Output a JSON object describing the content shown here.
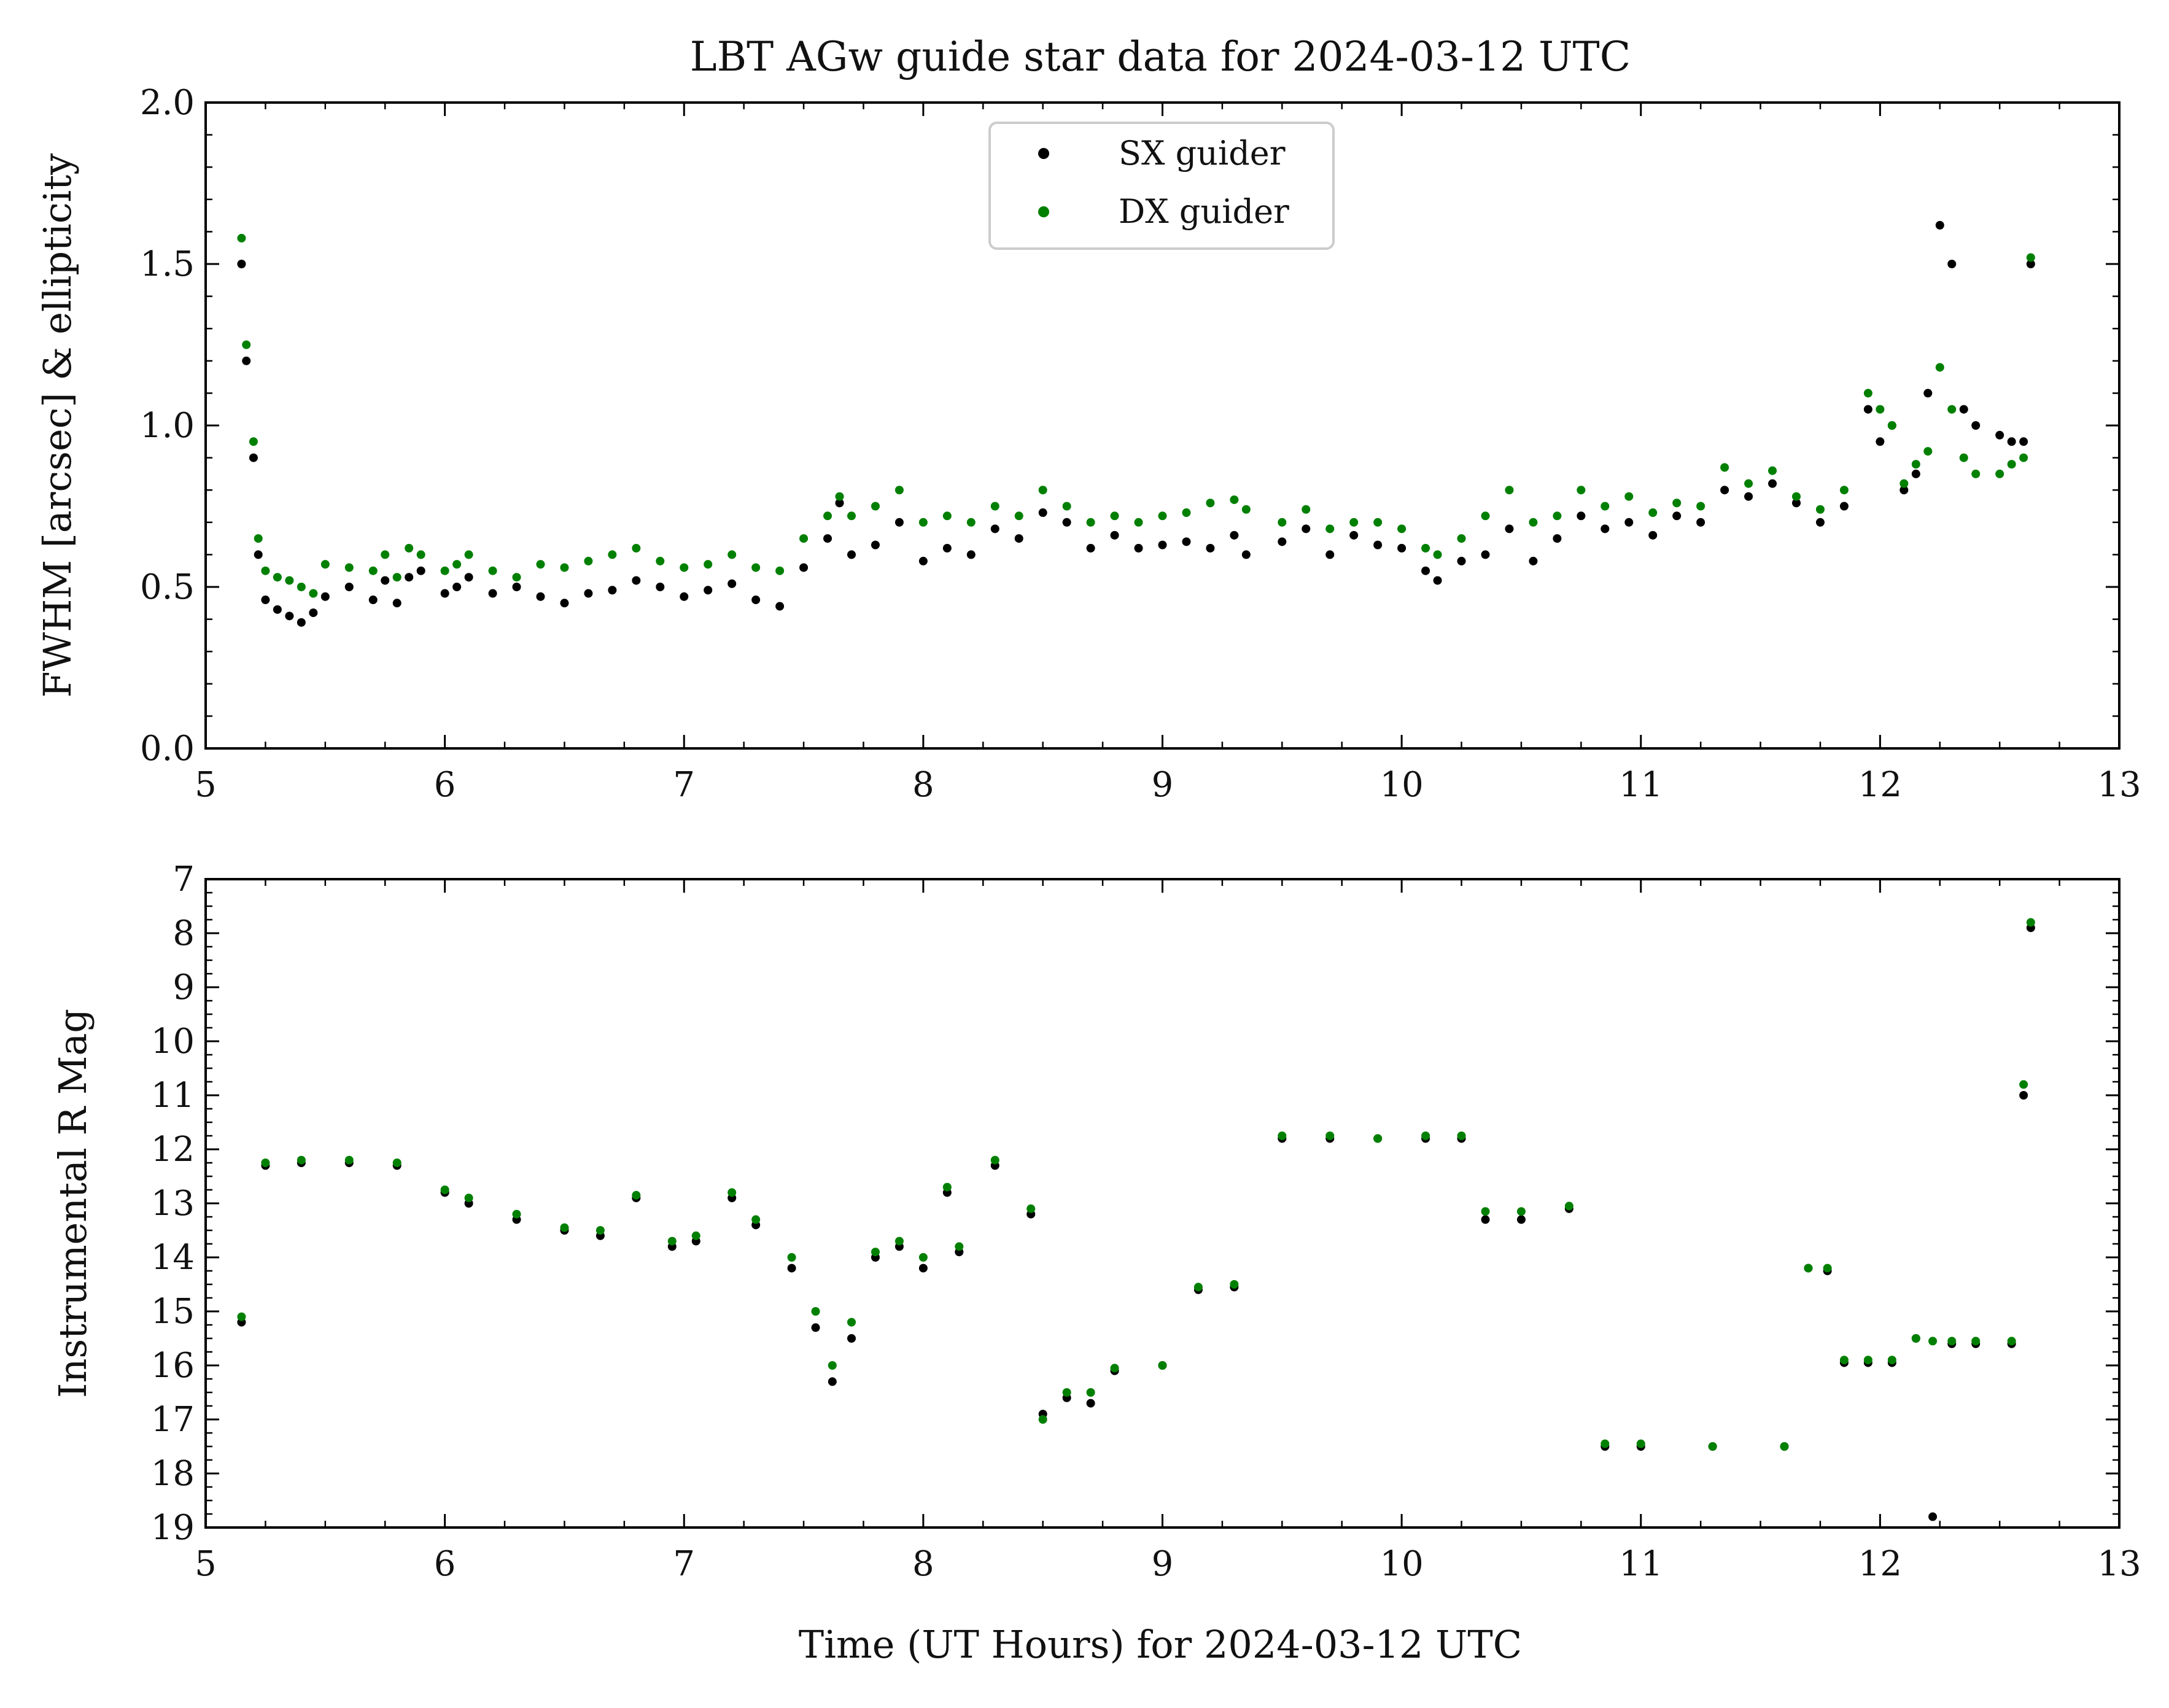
{
  "figure": {
    "title": "LBT AGw guide star data for 2024-03-12 UTC"
  },
  "colors": {
    "sx": "#000000",
    "dx": "#008000",
    "axis": "#000000",
    "legend_border": "#cccccc"
  },
  "legend": {
    "placement": "upper-center",
    "entries": [
      {
        "key": "sx",
        "label": "SX guider"
      },
      {
        "key": "dx",
        "label": "DX guider"
      }
    ]
  },
  "chart_data": [
    {
      "type": "scatter",
      "panel": "top",
      "xlabel": "",
      "ylabel": "FWHM [arcsec] & ellipticity",
      "xlim": [
        5,
        13
      ],
      "ylim": [
        0.0,
        2.0
      ],
      "xticks": [
        "5",
        "6",
        "7",
        "8",
        "9",
        "10",
        "11",
        "12",
        "13"
      ],
      "yticks": [
        "0.0",
        "0.5",
        "1.0",
        "1.5",
        "2.0"
      ],
      "series": [
        {
          "name": "SX guider",
          "key": "sx",
          "x": [
            5.15,
            5.17,
            5.2,
            5.22,
            5.25,
            5.3,
            5.35,
            5.4,
            5.45,
            5.5,
            5.6,
            5.7,
            5.75,
            5.8,
            5.85,
            5.9,
            6.0,
            6.05,
            6.1,
            6.2,
            6.3,
            6.4,
            6.5,
            6.6,
            6.7,
            6.8,
            6.9,
            7.0,
            7.1,
            7.2,
            7.3,
            7.4,
            7.5,
            7.6,
            7.65,
            7.7,
            7.8,
            7.9,
            8.0,
            8.1,
            8.2,
            8.3,
            8.4,
            8.5,
            8.6,
            8.7,
            8.8,
            8.9,
            9.0,
            9.1,
            9.2,
            9.3,
            9.35,
            9.5,
            9.6,
            9.7,
            9.8,
            9.9,
            10.0,
            10.1,
            10.15,
            10.25,
            10.35,
            10.45,
            10.55,
            10.65,
            10.75,
            10.85,
            10.95,
            11.05,
            11.15,
            11.25,
            11.35,
            11.45,
            11.55,
            11.65,
            11.75,
            11.85,
            11.95,
            12.0,
            12.05,
            12.1,
            12.15,
            12.2,
            12.25,
            12.3,
            12.35,
            12.4,
            12.5,
            12.55,
            12.6,
            12.63
          ],
          "y": [
            1.5,
            1.2,
            0.9,
            0.6,
            0.46,
            0.43,
            0.41,
            0.39,
            0.42,
            0.47,
            0.5,
            0.46,
            0.52,
            0.45,
            0.53,
            0.55,
            0.48,
            0.5,
            0.53,
            0.48,
            0.5,
            0.47,
            0.45,
            0.48,
            0.49,
            0.52,
            0.5,
            0.47,
            0.49,
            0.51,
            0.46,
            0.44,
            0.56,
            0.65,
            0.76,
            0.6,
            0.63,
            0.7,
            0.58,
            0.62,
            0.6,
            0.68,
            0.65,
            0.73,
            0.7,
            0.62,
            0.66,
            0.62,
            0.63,
            0.64,
            0.62,
            0.66,
            0.6,
            0.64,
            0.68,
            0.6,
            0.66,
            0.63,
            0.62,
            0.55,
            0.52,
            0.58,
            0.6,
            0.68,
            0.58,
            0.65,
            0.72,
            0.68,
            0.7,
            0.66,
            0.72,
            0.7,
            0.8,
            0.78,
            0.82,
            0.76,
            0.7,
            0.75,
            1.05,
            0.95,
            1.0,
            0.8,
            0.85,
            1.1,
            1.62,
            1.5,
            1.05,
            1.0,
            0.97,
            0.95,
            0.95,
            1.5
          ]
        },
        {
          "name": "DX guider",
          "key": "dx",
          "x": [
            5.15,
            5.17,
            5.2,
            5.22,
            5.25,
            5.3,
            5.35,
            5.4,
            5.45,
            5.5,
            5.6,
            5.7,
            5.75,
            5.8,
            5.85,
            5.9,
            6.0,
            6.05,
            6.1,
            6.2,
            6.3,
            6.4,
            6.5,
            6.6,
            6.7,
            6.8,
            6.9,
            7.0,
            7.1,
            7.2,
            7.3,
            7.4,
            7.5,
            7.6,
            7.65,
            7.7,
            7.8,
            7.9,
            8.0,
            8.1,
            8.2,
            8.3,
            8.4,
            8.5,
            8.6,
            8.7,
            8.8,
            8.9,
            9.0,
            9.1,
            9.2,
            9.3,
            9.35,
            9.5,
            9.6,
            9.7,
            9.8,
            9.9,
            10.0,
            10.1,
            10.15,
            10.25,
            10.35,
            10.45,
            10.55,
            10.65,
            10.75,
            10.85,
            10.95,
            11.05,
            11.15,
            11.25,
            11.35,
            11.45,
            11.55,
            11.65,
            11.75,
            11.85,
            11.95,
            12.0,
            12.05,
            12.1,
            12.15,
            12.2,
            12.25,
            12.3,
            12.35,
            12.4,
            12.5,
            12.55,
            12.6,
            12.63
          ],
          "y": [
            1.58,
            1.25,
            0.95,
            0.65,
            0.55,
            0.53,
            0.52,
            0.5,
            0.48,
            0.57,
            0.56,
            0.55,
            0.6,
            0.53,
            0.62,
            0.6,
            0.55,
            0.57,
            0.6,
            0.55,
            0.53,
            0.57,
            0.56,
            0.58,
            0.6,
            0.62,
            0.58,
            0.56,
            0.57,
            0.6,
            0.56,
            0.55,
            0.65,
            0.72,
            0.78,
            0.72,
            0.75,
            0.8,
            0.7,
            0.72,
            0.7,
            0.75,
            0.72,
            0.8,
            0.75,
            0.7,
            0.72,
            0.7,
            0.72,
            0.73,
            0.76,
            0.77,
            0.74,
            0.7,
            0.74,
            0.68,
            0.7,
            0.7,
            0.68,
            0.62,
            0.6,
            0.65,
            0.72,
            0.8,
            0.7,
            0.72,
            0.8,
            0.75,
            0.78,
            0.73,
            0.76,
            0.75,
            0.87,
            0.82,
            0.86,
            0.78,
            0.74,
            0.8,
            1.1,
            1.05,
            1.0,
            0.82,
            0.88,
            0.92,
            1.18,
            1.05,
            0.9,
            0.85,
            0.85,
            0.88,
            0.9,
            1.52
          ]
        }
      ]
    },
    {
      "type": "scatter",
      "panel": "bottom",
      "xlabel": "Time (UT Hours) for 2024-03-12 UTC",
      "ylabel": "Instrumental R Mag",
      "xlim": [
        5,
        13
      ],
      "ylim": [
        19,
        7
      ],
      "y_inverted": true,
      "xticks": [
        "5",
        "6",
        "7",
        "8",
        "9",
        "10",
        "11",
        "12",
        "13"
      ],
      "yticks": [
        "7",
        "8",
        "9",
        "10",
        "11",
        "12",
        "13",
        "14",
        "15",
        "16",
        "17",
        "18",
        "19"
      ],
      "series": [
        {
          "name": "SX guider",
          "key": "sx",
          "x": [
            5.15,
            5.25,
            5.4,
            5.6,
            5.8,
            6.0,
            6.1,
            6.3,
            6.5,
            6.65,
            6.8,
            6.95,
            7.05,
            7.2,
            7.3,
            7.45,
            7.55,
            7.62,
            7.7,
            7.8,
            7.9,
            8.0,
            8.1,
            8.15,
            8.3,
            8.45,
            8.5,
            8.6,
            8.7,
            8.8,
            9.0,
            9.15,
            9.3,
            9.5,
            9.7,
            9.9,
            10.1,
            10.25,
            10.35,
            10.5,
            10.7,
            10.85,
            11.0,
            11.3,
            11.6,
            11.7,
            11.78,
            11.85,
            11.95,
            12.05,
            12.15,
            12.22,
            12.3,
            12.4,
            12.55,
            12.6,
            12.63
          ],
          "y": [
            15.2,
            12.3,
            12.25,
            12.25,
            12.3,
            12.8,
            13.0,
            13.3,
            13.5,
            13.6,
            12.9,
            13.8,
            13.7,
            12.9,
            13.4,
            14.2,
            15.3,
            16.3,
            15.5,
            14.0,
            13.8,
            14.2,
            12.8,
            13.9,
            12.3,
            13.2,
            16.9,
            16.6,
            16.7,
            16.1,
            16.0,
            14.6,
            14.55,
            11.8,
            11.8,
            11.8,
            11.8,
            11.8,
            13.3,
            13.3,
            13.1,
            17.5,
            17.5,
            17.5,
            17.5,
            14.2,
            14.25,
            15.95,
            15.95,
            15.95,
            15.5,
            18.8,
            15.6,
            15.6,
            15.6,
            11.0,
            7.9
          ]
        },
        {
          "name": "DX guider",
          "key": "dx",
          "x": [
            5.15,
            5.25,
            5.4,
            5.6,
            5.8,
            6.0,
            6.1,
            6.3,
            6.5,
            6.65,
            6.8,
            6.95,
            7.05,
            7.2,
            7.3,
            7.45,
            7.55,
            7.62,
            7.7,
            7.8,
            7.9,
            8.0,
            8.1,
            8.15,
            8.3,
            8.45,
            8.5,
            8.6,
            8.7,
            8.8,
            9.0,
            9.15,
            9.3,
            9.5,
            9.7,
            9.9,
            10.1,
            10.25,
            10.35,
            10.5,
            10.7,
            10.85,
            11.0,
            11.3,
            11.6,
            11.7,
            11.78,
            11.85,
            11.95,
            12.05,
            12.15,
            12.22,
            12.3,
            12.4,
            12.55,
            12.6,
            12.63
          ],
          "y": [
            15.1,
            12.25,
            12.2,
            12.2,
            12.25,
            12.75,
            12.9,
            13.2,
            13.45,
            13.5,
            12.85,
            13.7,
            13.6,
            12.8,
            13.3,
            14.0,
            15.0,
            16.0,
            15.2,
            13.9,
            13.7,
            14.0,
            12.7,
            13.8,
            12.2,
            13.1,
            17.0,
            16.5,
            16.5,
            16.05,
            16.0,
            14.55,
            14.5,
            11.75,
            11.75,
            11.8,
            11.75,
            11.75,
            13.15,
            13.15,
            13.05,
            17.45,
            17.45,
            17.5,
            17.5,
            14.2,
            14.2,
            15.9,
            15.9,
            15.9,
            15.5,
            15.55,
            15.55,
            15.55,
            15.55,
            10.8,
            7.8
          ]
        }
      ]
    }
  ]
}
